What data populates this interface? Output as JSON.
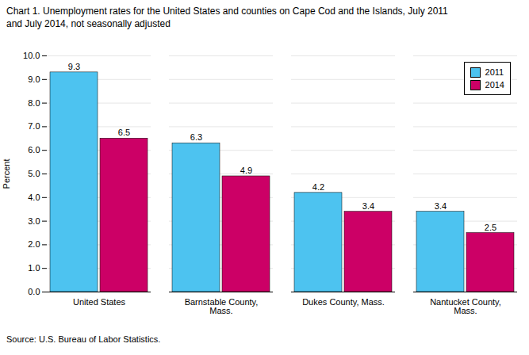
{
  "chart_data": {
    "type": "bar",
    "title": "Chart 1. Unemployment rates for the United States and counties on Cape Cod and the Islands, July 2011",
    "subtitle": "and July 2014, not seasonally adjusted",
    "source": "Source: U.S. Bureau of Labor Statistics.",
    "categories": [
      "United States",
      "Barnstable County,\nMass.",
      "Dukes County, Mass.",
      "Nantucket County,\nMass."
    ],
    "series": [
      {
        "name": "2011",
        "color": "#4DC3F0",
        "values": [
          9.3,
          6.3,
          4.2,
          3.4
        ]
      },
      {
        "name": "2014",
        "color": "#CC0066",
        "values": [
          6.5,
          4.9,
          3.4,
          2.5
        ]
      }
    ],
    "ylabel": "Percent",
    "ylim": [
      0.0,
      10.0
    ],
    "yticks": [
      {
        "value": 0,
        "label": "0.0"
      },
      {
        "value": 1,
        "label": "1.0"
      },
      {
        "value": 2,
        "label": "2.0"
      },
      {
        "value": 3,
        "label": "3.0"
      },
      {
        "value": 4,
        "label": "4.0"
      },
      {
        "value": 5,
        "label": "5.0"
      },
      {
        "value": 6,
        "label": "6.0"
      },
      {
        "value": 7,
        "label": "7.0"
      },
      {
        "value": 8,
        "label": "8.0"
      },
      {
        "value": 9,
        "label": "9.0"
      },
      {
        "value": 10,
        "label": "10.0"
      }
    ],
    "grid": true,
    "legend": "upper right",
    "data_labels": true
  }
}
